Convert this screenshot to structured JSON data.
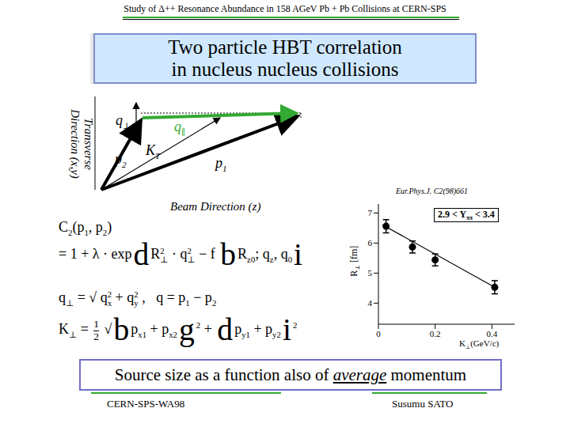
{
  "header": "Study of Δ++ Resonance Abundance in 158 AGeV Pb + Pb Collisions at CERN-SPS",
  "title": [
    "Two particle HBT correlation",
    "in nucleus nucleus collisions"
  ],
  "diagram": {
    "vertical_axis": [
      "Transverse",
      "Direction (x,y)"
    ],
    "horizontal_axis": "Beam Direction (z)",
    "vectors": {
      "q_perp": {
        "main": "q",
        "sub": "⊥"
      },
      "q_par": {
        "main": "q",
        "sub": "∥"
      },
      "p2": {
        "main": "p",
        "sub": "2"
      },
      "kt": {
        "main": "K",
        "sub": "T"
      },
      "p1": {
        "main": "p",
        "sub": "1"
      }
    }
  },
  "formulas": [
    [
      "C",
      {
        "sub": "2"
      },
      "(p",
      {
        "sub": "1"
      },
      ", p",
      {
        "sub": "2"
      },
      ")"
    ],
    [
      "= 1 + λ · exp",
      {
        "big": "d"
      },
      "R",
      {
        "sub": "⊥",
        "sup": "2"
      },
      " · q",
      {
        "sub": "⊥",
        "sup": "2"
      },
      " − f ",
      {
        "big": "b"
      },
      "R",
      {
        "sub": "z0"
      },
      "; q",
      {
        "sub": "z"
      },
      ", q",
      {
        "sub": "0"
      },
      {
        "big": "i"
      }
    ],
    [
      "q",
      {
        "sub": "⊥"
      },
      " = √ q",
      {
        "sub": "x",
        "sup": "2"
      },
      " + q",
      {
        "sub": "y",
        "sup": "2"
      },
      " ,   q = p",
      {
        "sub": "1"
      },
      " − p",
      {
        "sub": "2"
      }
    ],
    [
      "K",
      {
        "sub": "⊥"
      },
      " = ",
      {
        "frac": [
          "1",
          "2"
        ]
      },
      " √",
      {
        "big": "b"
      },
      "p",
      {
        "sub": "x1"
      },
      " + p",
      {
        "sub": "x2"
      },
      {
        "big": "g"
      },
      {
        "sup": "2"
      },
      " + ",
      {
        "big": "d"
      },
      "p",
      {
        "sub": "y1"
      },
      " + p",
      {
        "sub": "y2"
      },
      {
        "big": "i"
      },
      {
        "sup": "2"
      }
    ]
  ],
  "chart_data": {
    "type": "scatter",
    "source": "Eur.Phys.J. C2(98)661",
    "annotation": [
      "2.9 < Y",
      {
        "sub": "ππ"
      },
      " < 3.4"
    ],
    "x_label": [
      "K",
      {
        "sub": "⊥"
      },
      "(GeV/c)"
    ],
    "y_label": [
      "R",
      {
        "sub": "⊥"
      },
      " [fm]"
    ],
    "x": [
      0.027,
      0.12,
      0.2,
      0.41
    ],
    "values": [
      6.56,
      5.87,
      5.44,
      4.53
    ],
    "errors": [
      0.22,
      0.2,
      0.2,
      0.22
    ],
    "color": "#000000",
    "marker": "circle",
    "fit": {
      "x": [
        0.014,
        0.42
      ],
      "values": [
        6.61,
        4.48
      ]
    },
    "xlim": [
      0,
      0.48
    ],
    "xticks": [
      0,
      0.2,
      0.4
    ],
    "ylim": [
      3.3,
      7.3
    ],
    "yticks": [
      4,
      5,
      6,
      7
    ]
  },
  "footer": {
    "before": "Source size as a function also of ",
    "emphasis": "average",
    "after": " momentum"
  },
  "footer_left": "CERN-SPS-WA98",
  "footer_right": "Susumu SATO"
}
